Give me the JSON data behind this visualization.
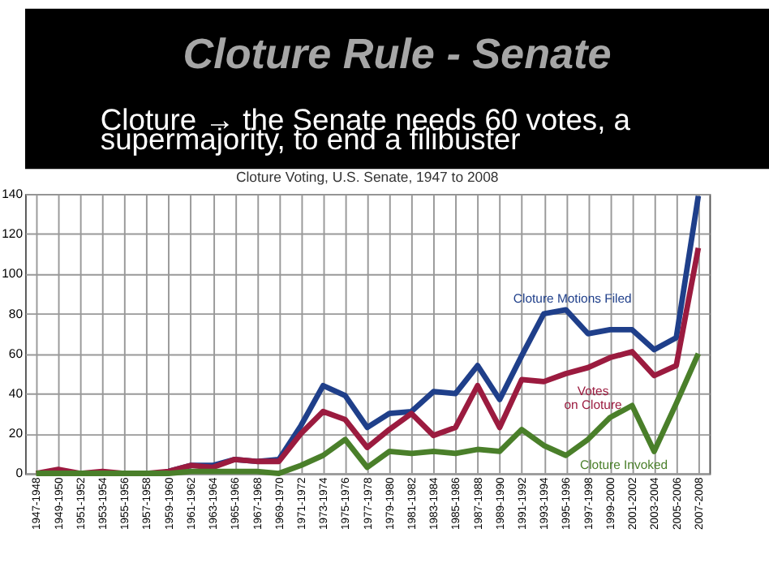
{
  "chart_data": {
    "type": "line",
    "title": "Cloture Rule - Senate",
    "subtitle": "Cloture → the Senate needs 60 votes, a supermajority, to end a filibuster",
    "annotations": [
      "Cloture Voting, U.S. Senate, 1947 to 2008"
    ],
    "categories": [
      "1947-1948",
      "1949-1950",
      "1951-1952",
      "1953-1954",
      "1955-1956",
      "1957-1958",
      "1959-1960",
      "1961-1962",
      "1963-1964",
      "1965-1966",
      "1967-1968",
      "1969-1970",
      "1971-1972",
      "1973-1974",
      "1975-1976",
      "1977-1978",
      "1979-1980",
      "1981-1982",
      "1983-1984",
      "1985-1986",
      "1987-1988",
      "1989-1990",
      "1991-1992",
      "1993-1994",
      "1995-1996",
      "1997-1998",
      "1999-2000",
      "2001-2002",
      "2003-2004",
      "2005-2006",
      "2007-2008"
    ],
    "series": [
      {
        "name": "Cloture Motions Filed",
        "color": "#1f3f8a",
        "values": [
          null,
          null,
          null,
          null,
          null,
          null,
          1,
          4,
          4,
          7,
          6,
          7,
          24,
          44,
          39,
          23,
          30,
          31,
          41,
          40,
          54,
          37,
          59,
          80,
          82,
          70,
          72,
          72,
          62,
          68,
          139
        ]
      },
      {
        "name": "Votes on Cloture",
        "color": "#9b1b3f",
        "values": [
          0,
          2,
          0,
          1,
          0,
          0,
          1,
          4,
          3,
          7,
          6,
          6,
          20,
          31,
          27,
          13,
          22,
          30,
          19,
          23,
          44,
          23,
          47,
          46,
          50,
          53,
          58,
          61,
          49,
          54,
          113
        ]
      },
      {
        "name": "Cloture Invoked",
        "color": "#4a7f2a",
        "values": [
          0,
          0,
          0,
          0,
          0,
          0,
          0,
          1,
          1,
          1,
          1,
          0,
          4,
          9,
          17,
          3,
          11,
          10,
          11,
          10,
          12,
          11,
          22,
          14,
          9,
          17,
          28,
          34,
          11,
          35,
          60
        ]
      }
    ],
    "ylim": [
      0,
      140
    ],
    "yticks": [
      0,
      20,
      40,
      60,
      80,
      100,
      120,
      140
    ],
    "grid": true,
    "legend": false,
    "marker": "none",
    "line_style": "solid"
  }
}
